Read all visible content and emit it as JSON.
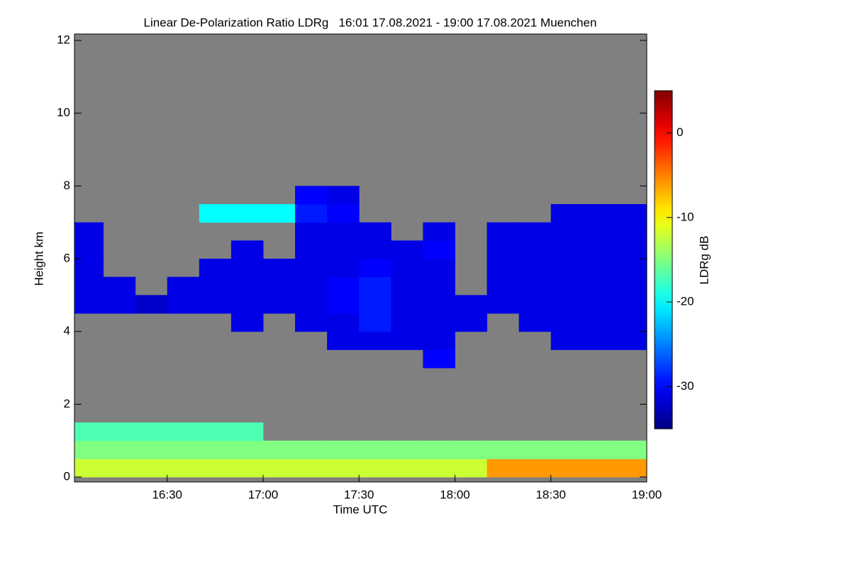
{
  "chart_data": {
    "type": "heatmap",
    "title": "Linear De-Polarization Ratio LDRg   16:01 17.08.2021 - 19:00 17.08.2021 Muenchen",
    "x_label": "Time UTC",
    "y_label": "Height km",
    "colorbar_label": "LDRg dB",
    "xlim": [
      961,
      1140
    ],
    "xticks": [
      {
        "value": 990,
        "label": "16:30"
      },
      {
        "value": 1020,
        "label": "17:00"
      },
      {
        "value": 1050,
        "label": "17:30"
      },
      {
        "value": 1080,
        "label": "18:00"
      },
      {
        "value": 1110,
        "label": "18:30"
      },
      {
        "value": 1140,
        "label": "19:00"
      }
    ],
    "ylim": [
      0,
      12
    ],
    "yticks": [
      0,
      2,
      4,
      6,
      8,
      10,
      12
    ],
    "clim": [
      -35,
      5
    ],
    "cticks": [
      0,
      -10,
      -20,
      -30
    ],
    "colormap": "jet",
    "missing_color": "#808080",
    "x_bins": [
      961,
      970,
      980,
      990,
      1000,
      1010,
      1020,
      1030,
      1040,
      1050,
      1060,
      1070,
      1080,
      1090,
      1100,
      1110,
      1120,
      1130,
      1140
    ],
    "y_bins": [
      0,
      0.5,
      1,
      1.5,
      2,
      2.5,
      3,
      3.5,
      4,
      4.5,
      5,
      5.5,
      6,
      6.5,
      7,
      7.5,
      8
    ],
    "z": [
      [
        -12,
        -12,
        -12,
        -12,
        -12,
        -12,
        -12,
        -12,
        -12,
        -12,
        -12,
        -12,
        -12,
        -6,
        -6,
        -6,
        -6,
        -6
      ],
      [
        -15,
        -15,
        -15,
        -15,
        -15,
        -15,
        -15,
        -15,
        -15,
        -15,
        -15,
        -15,
        -15,
        -15,
        -15,
        -15,
        -15,
        -15
      ],
      [
        -17,
        -17,
        -17,
        -17,
        -17,
        -17,
        null,
        null,
        null,
        null,
        null,
        null,
        null,
        null,
        null,
        null,
        null,
        null
      ],
      [
        null,
        null,
        null,
        null,
        null,
        null,
        null,
        null,
        null,
        null,
        null,
        null,
        null,
        null,
        null,
        null,
        null,
        null
      ],
      [
        null,
        null,
        null,
        null,
        null,
        null,
        null,
        null,
        null,
        null,
        null,
        null,
        null,
        null,
        null,
        null,
        null,
        null
      ],
      [
        null,
        null,
        null,
        null,
        null,
        null,
        null,
        null,
        null,
        null,
        null,
        null,
        null,
        null,
        null,
        null,
        null,
        null
      ],
      [
        null,
        null,
        null,
        null,
        null,
        null,
        null,
        null,
        null,
        null,
        null,
        -30,
        null,
        null,
        null,
        null,
        null,
        null
      ],
      [
        null,
        null,
        null,
        null,
        null,
        null,
        null,
        null,
        -31,
        -31,
        -31,
        -31,
        null,
        null,
        null,
        -31,
        -31,
        -31
      ],
      [
        null,
        null,
        null,
        null,
        null,
        -31,
        null,
        -31,
        -31,
        -29,
        -31,
        -31,
        -31,
        null,
        -31,
        -31,
        -31,
        -31
      ],
      [
        -31,
        -31,
        -32,
        -31,
        -31,
        -31,
        -31,
        -31,
        -30,
        -29,
        -31,
        -31,
        -31,
        -31,
        -31,
        -31,
        -31,
        -31
      ],
      [
        -31,
        -31,
        null,
        -31,
        -31,
        -31,
        -31,
        -31,
        -30,
        -29,
        -31,
        -31,
        null,
        -31,
        -31,
        -31,
        -31,
        -31
      ],
      [
        -31,
        null,
        null,
        null,
        -31,
        -31,
        -31,
        -31,
        -31,
        -30,
        -31,
        -31,
        null,
        -31,
        -31,
        -31,
        -31,
        -31
      ],
      [
        -31,
        null,
        null,
        null,
        null,
        -31,
        null,
        -31,
        -31,
        -31,
        -31,
        -30,
        null,
        -31,
        -31,
        -31,
        -31,
        -31
      ],
      [
        -31,
        null,
        null,
        null,
        null,
        null,
        null,
        -31,
        -31,
        -31,
        null,
        -31,
        null,
        -31,
        -31,
        -31,
        -31,
        -31
      ],
      [
        null,
        null,
        null,
        null,
        -20,
        -20,
        -20,
        -29,
        -30,
        null,
        null,
        null,
        null,
        null,
        null,
        -31,
        -31,
        -31
      ],
      [
        null,
        null,
        null,
        null,
        null,
        null,
        null,
        -30,
        -31,
        null,
        null,
        null,
        null,
        null,
        null,
        null,
        null,
        null
      ]
    ]
  }
}
